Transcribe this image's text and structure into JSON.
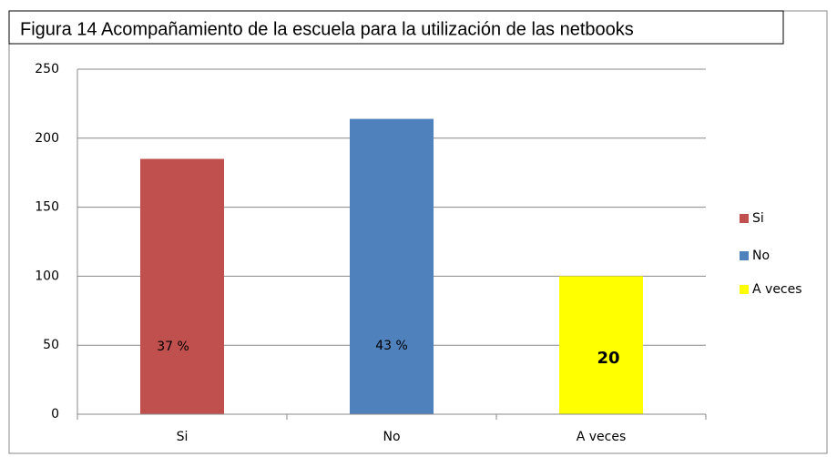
{
  "chart_data": {
    "type": "bar",
    "title": "Figura 14 Acompañamiento de la escuela para la utilización de las netbooks",
    "categories": [
      "Si",
      "No",
      "A veces"
    ],
    "values": [
      185,
      214,
      100
    ],
    "colors": [
      "#c0504d",
      "#4f81bd",
      "#ffff00"
    ],
    "annotations": [
      "37 %",
      "43 %",
      "20"
    ],
    "ylim": [
      0,
      250
    ],
    "yticks": [
      0,
      50,
      100,
      150,
      200,
      250
    ],
    "grid": true,
    "legend": "right"
  }
}
